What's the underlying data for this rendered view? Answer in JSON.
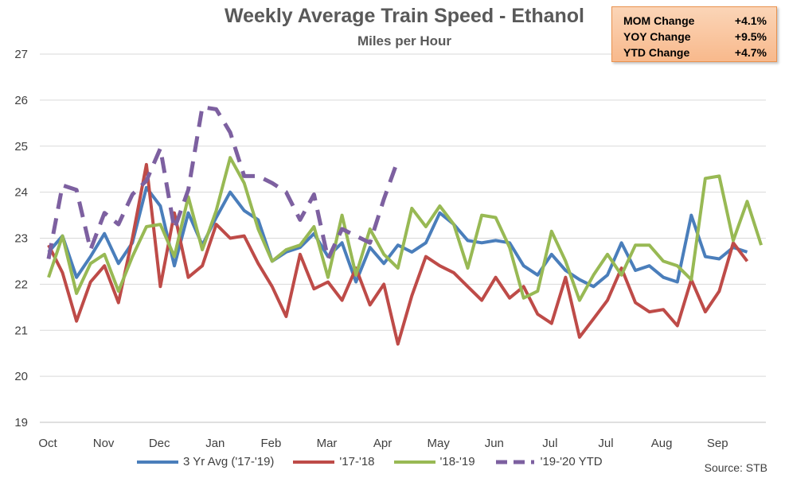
{
  "title": "Weekly Average Train Speed - Ethanol",
  "subtitle": "Miles per Hour",
  "stats_box": [
    {
      "label": "MOM Change",
      "value": "+4.1%"
    },
    {
      "label": "YOY Change",
      "value": "+9.5%"
    },
    {
      "label": "YTD Change",
      "value": "+4.7%"
    }
  ],
  "source": "Source:  STB",
  "chart_data": {
    "type": "line",
    "ylim": [
      19,
      27
    ],
    "yticks": [
      19,
      20,
      21,
      22,
      23,
      24,
      25,
      26,
      27
    ],
    "month_labels": [
      "Oct",
      "Nov",
      "Dec",
      "Jan",
      "Feb",
      "Mar",
      "Apr",
      "May",
      "Jun",
      "Jul",
      "Jul",
      "Aug",
      "Sep"
    ],
    "grid": "horizontal",
    "legend_position": "bottom",
    "series": [
      {
        "name": "3 Yr Avg ('17-'19)",
        "color": "#4a7ebb",
        "dash": false,
        "values": [
          22.7,
          23.05,
          22.15,
          22.6,
          23.1,
          22.45,
          22.9,
          24.1,
          23.7,
          22.4,
          23.55,
          22.85,
          23.45,
          24.0,
          23.6,
          23.4,
          22.5,
          22.7,
          22.8,
          23.1,
          22.6,
          22.9,
          22.05,
          22.8,
          22.45,
          22.85,
          22.7,
          22.9,
          23.55,
          23.3,
          22.95,
          22.9,
          22.95,
          22.9,
          22.4,
          22.2,
          22.65,
          22.3,
          22.1,
          21.95,
          22.2,
          22.9,
          22.3,
          22.4,
          22.15,
          22.05,
          23.5,
          22.6,
          22.55,
          22.8,
          22.7
        ]
      },
      {
        "name": "'17-'18",
        "color": "#be4b48",
        "dash": false,
        "values": [
          22.85,
          22.25,
          21.2,
          22.05,
          22.4,
          21.6,
          23.0,
          24.6,
          21.95,
          23.55,
          22.15,
          22.4,
          23.3,
          23.0,
          23.05,
          22.45,
          21.95,
          21.3,
          22.65,
          21.9,
          22.05,
          21.65,
          22.35,
          21.55,
          22.0,
          20.7,
          21.75,
          22.6,
          22.4,
          22.25,
          21.95,
          21.65,
          22.15,
          21.7,
          21.95,
          21.35,
          21.15,
          22.15,
          20.85,
          21.25,
          21.65,
          22.35,
          21.6,
          21.4,
          21.45,
          21.1,
          22.1,
          21.4,
          21.85,
          22.9,
          22.5
        ]
      },
      {
        "name": "'18-'19",
        "color": "#98b954",
        "dash": false,
        "values": [
          22.15,
          23.05,
          21.8,
          22.45,
          22.65,
          21.85,
          22.6,
          23.25,
          23.3,
          22.6,
          23.9,
          22.75,
          23.6,
          24.75,
          24.2,
          23.2,
          22.5,
          22.75,
          22.85,
          23.25,
          22.15,
          23.5,
          22.2,
          23.2,
          22.65,
          22.35,
          23.65,
          23.25,
          23.7,
          23.3,
          22.35,
          23.5,
          23.45,
          22.8,
          21.7,
          21.85,
          23.15,
          22.5,
          21.65,
          22.2,
          22.65,
          22.2,
          22.85,
          22.85,
          22.5,
          22.4,
          22.1,
          24.3,
          24.35,
          22.95,
          23.8,
          22.85
        ]
      },
      {
        "name": "'19-'20 YTD",
        "color": "#7d60a0",
        "dash": true,
        "values": [
          22.55,
          24.15,
          24.05,
          22.75,
          23.55,
          23.3,
          23.95,
          24.25,
          24.95,
          23.2,
          24.05,
          25.85,
          25.8,
          25.3,
          24.35,
          24.35,
          24.2,
          24.0,
          23.4,
          23.95,
          22.55,
          23.2,
          23.05,
          22.9,
          23.85,
          24.7
        ]
      }
    ]
  }
}
